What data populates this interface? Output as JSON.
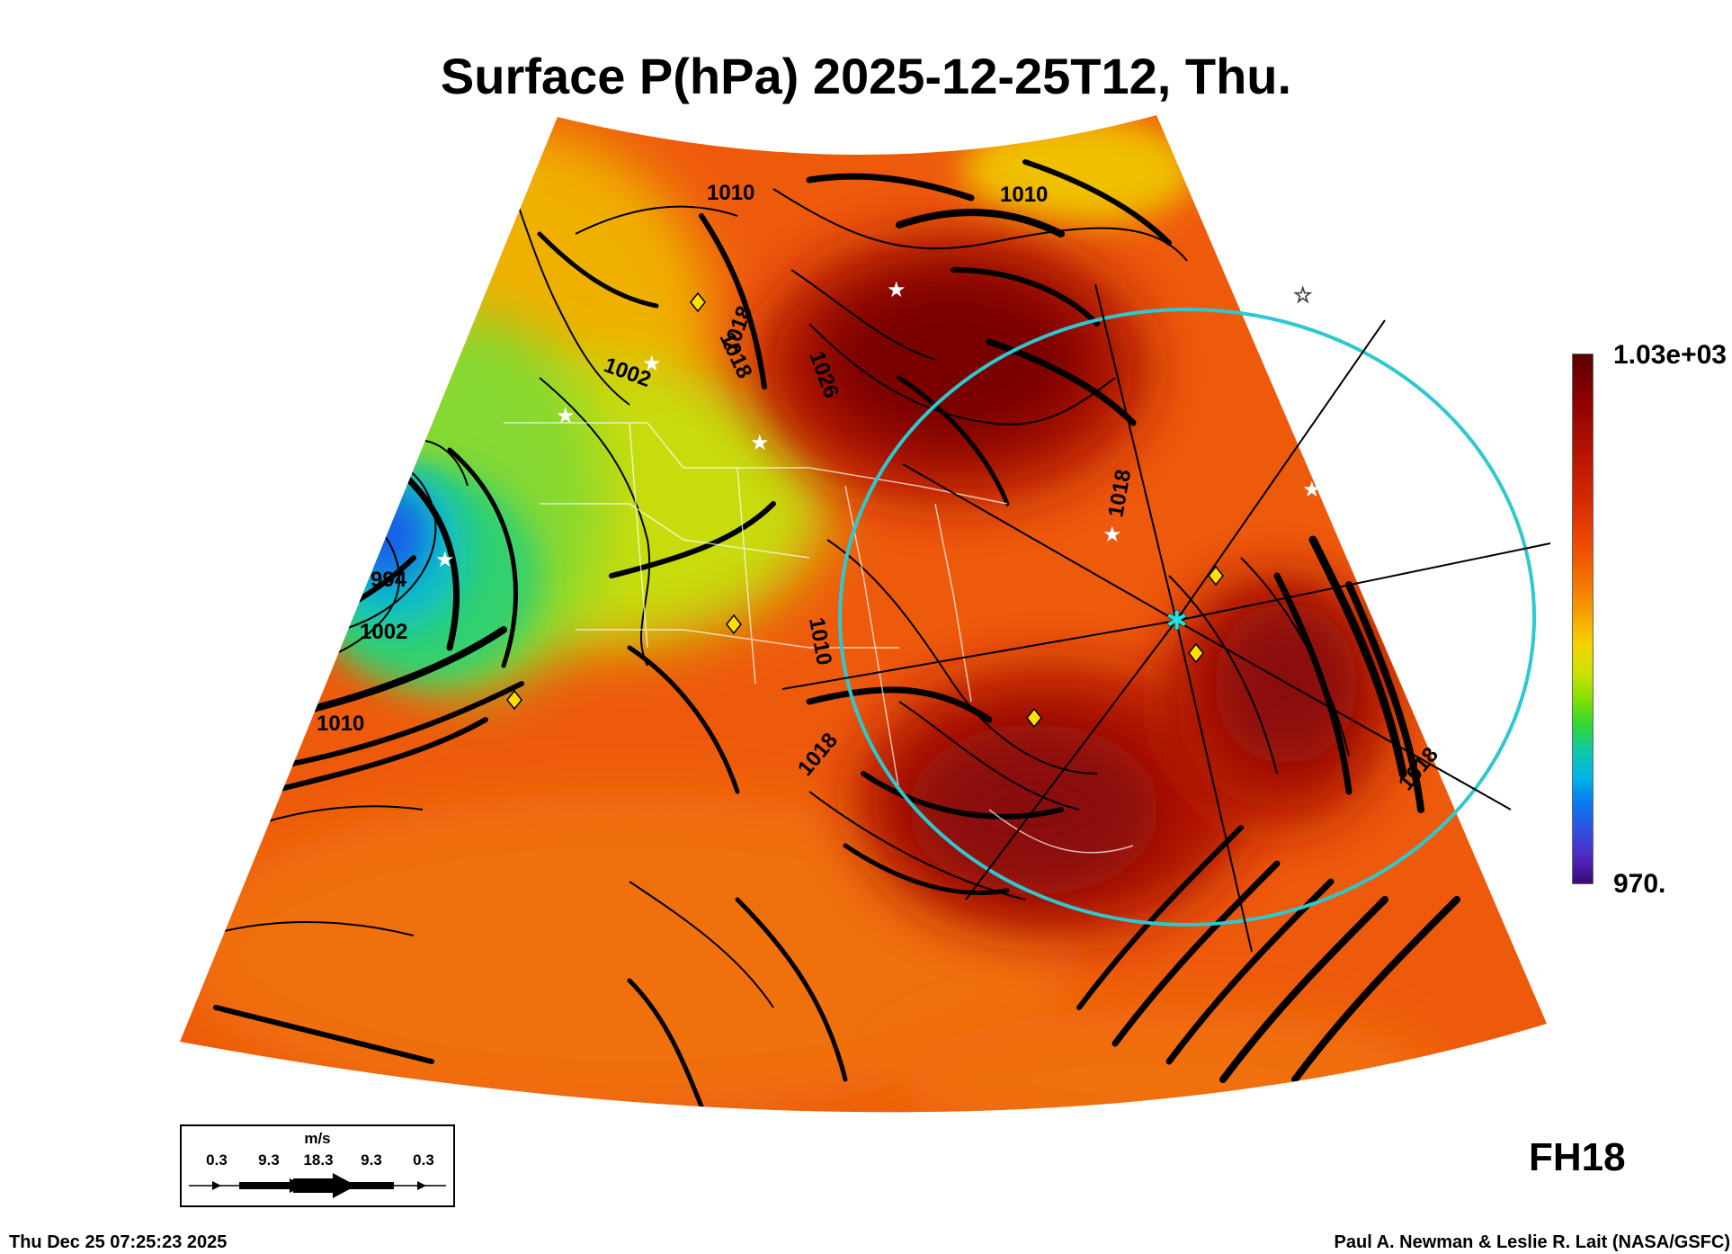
{
  "title": "Surface P(hPa) 2025-12-25T12, Thu.",
  "forecast_hour": "FH18",
  "timestamp": "Thu Dec 25 07:25:23 2025",
  "credit": "Paul A. Newman & Leslie R. Lait (NASA/GSFC)",
  "colorbar": {
    "max_label": "1.03e+03",
    "min_label": "970."
  },
  "wind_legend": {
    "unit": "m/s",
    "values": [
      "0.3",
      "9.3",
      "18.3",
      "9.3",
      "0.3"
    ]
  },
  "contour_labels": [
    "1010",
    "1010",
    "1002",
    "1018",
    "1026",
    "994",
    "1002",
    "1010",
    "1018",
    "1010",
    "1018",
    "1018",
    "1018"
  ],
  "colors": {
    "ocean_orange": "#ee5a0c",
    "high_dark_red": "#7a0606",
    "low_blue": "#1860e8",
    "range_ring": "#2ec8d0",
    "marker_yellow": "#ffe000"
  },
  "markers": {
    "center_marker": "cyan-asterisk",
    "stations": "white-star",
    "sites": "yellow-diamond"
  }
}
